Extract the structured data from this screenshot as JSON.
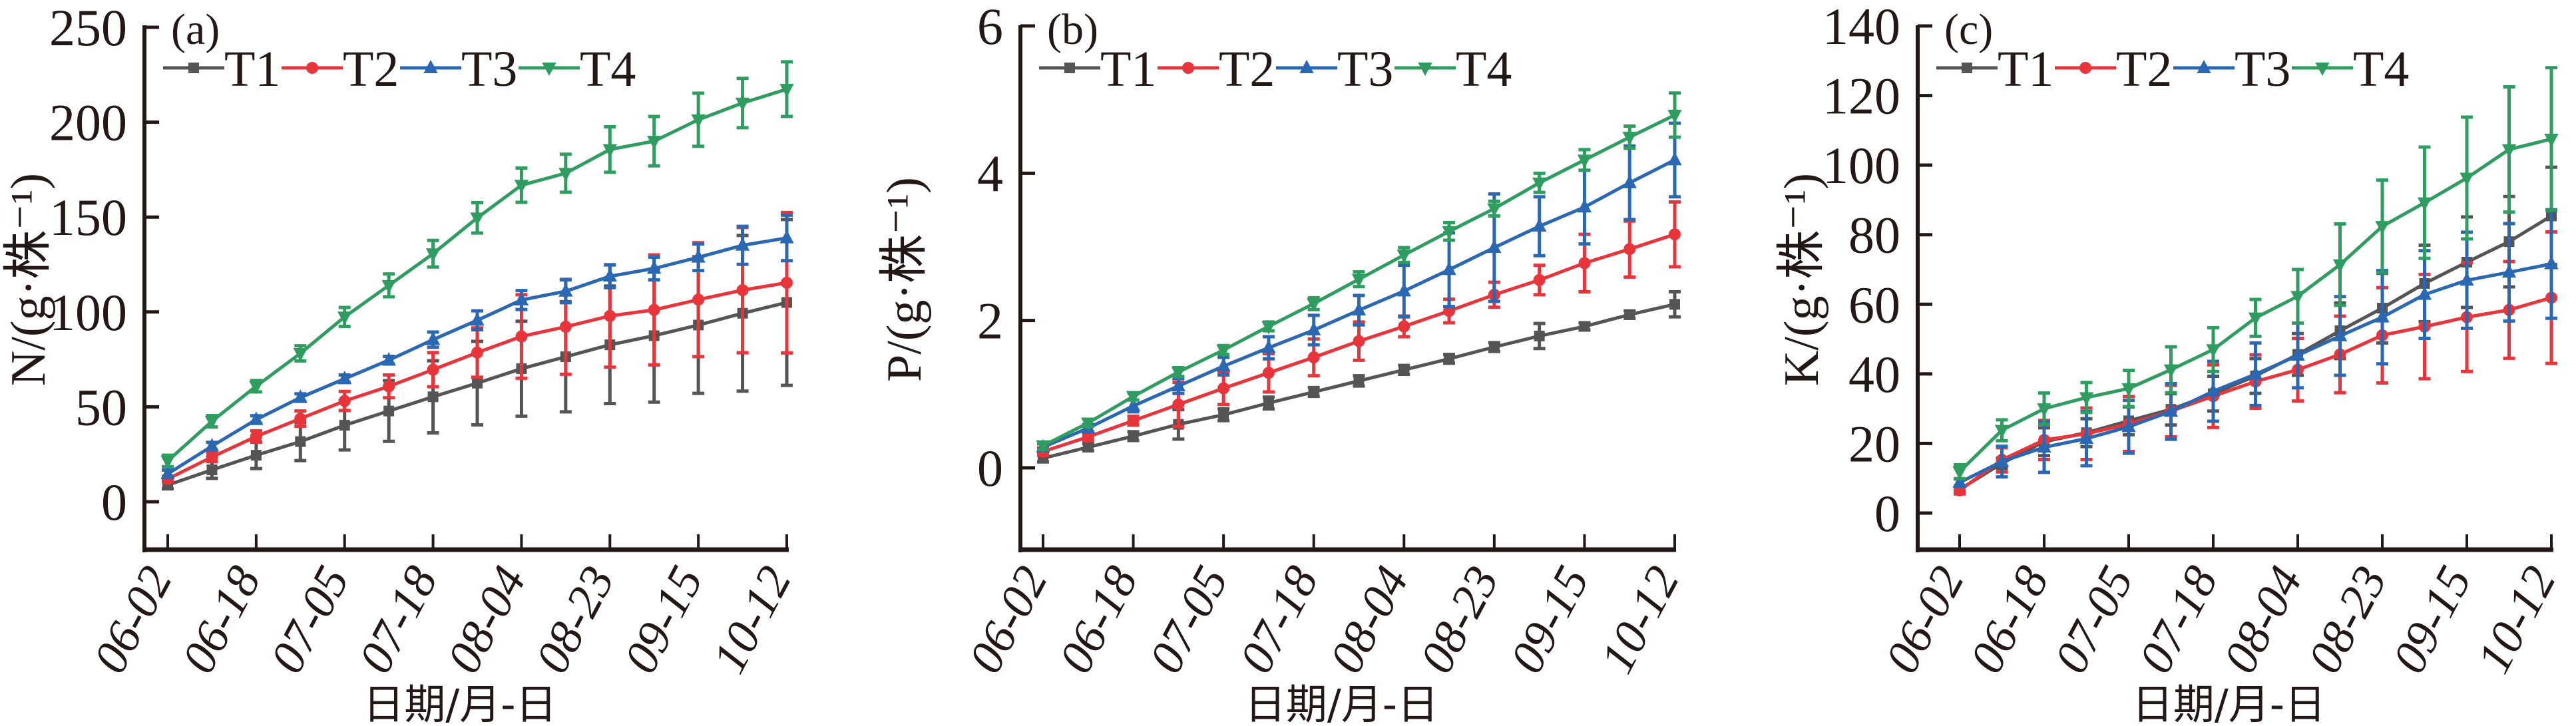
{
  "chart_data": [
    {
      "type": "line",
      "panel_label": "(a)",
      "ylabel": "N/(g·株⁻¹)",
      "xlabel": "日期/月-日",
      "ylim": [
        0,
        250
      ],
      "yticks": [
        "0",
        "50",
        "100",
        "150",
        "200",
        "250"
      ],
      "ytick_values": [
        0,
        50,
        100,
        150,
        200,
        250
      ],
      "x_count": 15,
      "xtick_labels": [
        "06-02",
        "06-18",
        "07-05",
        "07-18",
        "08-04",
        "08-23",
        "09-15",
        "10-12"
      ],
      "xtick_indices": [
        0,
        2,
        4,
        6,
        8,
        10,
        12,
        14
      ],
      "legend": "top-left",
      "series": [
        {
          "name": "T1",
          "color": "#555555",
          "marker": "square",
          "values": [
            8.8,
            16.8,
            24.5,
            31.7,
            40.3,
            47.8,
            55.3,
            62.5,
            70.1,
            76.4,
            82.7,
            87.5,
            93.1,
            99.3,
            105.0
          ],
          "errors": [
            2,
            4.5,
            7,
            10,
            13,
            16,
            19,
            22,
            25,
            29,
            31,
            35,
            36,
            41,
            43.7
          ]
        },
        {
          "name": "T2",
          "color": "#e8353b",
          "marker": "circle",
          "values": [
            12.0,
            23.6,
            34.4,
            43.8,
            53.1,
            60.8,
            69.6,
            78.6,
            87.1,
            92.2,
            97.9,
            101.1,
            106.5,
            111.5,
            115.4
          ],
          "errors": [
            1.5,
            2.5,
            3,
            4,
            5,
            6,
            9,
            13,
            22,
            25,
            27,
            29,
            30,
            33,
            37
          ]
        },
        {
          "name": "T3",
          "color": "#2b68b3",
          "marker": "triangle-up",
          "values": [
            14.7,
            29.3,
            43.3,
            54.9,
            64.8,
            74.6,
            85.4,
            95.6,
            106.3,
            110.9,
            118.8,
            122.9,
            128.8,
            135.1,
            139.0
          ],
          "errors": [
            2,
            2,
            2,
            2,
            2,
            2,
            4,
            5,
            5,
            6,
            6,
            6,
            7,
            10,
            12
          ]
        },
        {
          "name": "T4",
          "color": "#2e9d5f",
          "marker": "triangle-down",
          "values": [
            21.5,
            42.4,
            60.9,
            78.2,
            97.4,
            114.0,
            130.7,
            149.6,
            166.8,
            173.1,
            185.6,
            190.0,
            201.3,
            210.1,
            217.4
          ],
          "errors": [
            3,
            3,
            3,
            4,
            5,
            6,
            7,
            8,
            9,
            10,
            12,
            13,
            14,
            13,
            14.4
          ]
        }
      ]
    },
    {
      "type": "line",
      "panel_label": "(b)",
      "ylabel": "P/(g·株⁻¹)",
      "xlabel": "日期/月-日",
      "ylim": [
        -1.2,
        6
      ],
      "yticks": [
        "0",
        "2",
        "4",
        "6"
      ],
      "ytick_values": [
        0,
        2,
        4,
        6
      ],
      "x_count": 15,
      "xtick_labels": [
        "06-02",
        "06-18",
        "07-05",
        "07-18",
        "08-04",
        "08-23",
        "09-15",
        "10-12"
      ],
      "xtick_indices": [
        0,
        2,
        4,
        6,
        8,
        10,
        12,
        14
      ],
      "legend": "top-left",
      "series": [
        {
          "name": "T1",
          "color": "#555555",
          "marker": "square",
          "values": [
            0.13,
            0.28,
            0.43,
            0.59,
            0.72,
            0.88,
            1.03,
            1.18,
            1.33,
            1.48,
            1.64,
            1.79,
            1.92,
            2.08,
            2.22
          ],
          "errors": [
            0.05,
            0.05,
            0.06,
            0.2,
            0.08,
            0.08,
            0.06,
            0.07,
            0.06,
            0.06,
            0.06,
            0.17,
            0.05,
            0.05,
            0.17
          ]
        },
        {
          "name": "T2",
          "color": "#e8353b",
          "marker": "circle",
          "values": [
            0.22,
            0.42,
            0.64,
            0.86,
            1.08,
            1.29,
            1.5,
            1.72,
            1.92,
            2.13,
            2.35,
            2.55,
            2.78,
            2.97,
            3.17
          ],
          "errors": [
            0.05,
            0.05,
            0.06,
            0.3,
            0.22,
            0.26,
            0.25,
            0.26,
            0.14,
            0.16,
            0.17,
            0.2,
            0.39,
            0.38,
            0.44
          ]
        },
        {
          "name": "T3",
          "color": "#2b68b3",
          "marker": "triangle-up",
          "values": [
            0.28,
            0.54,
            0.84,
            1.11,
            1.38,
            1.63,
            1.87,
            2.14,
            2.4,
            2.69,
            2.99,
            3.28,
            3.54,
            3.87,
            4.18
          ],
          "errors": [
            0.05,
            0.05,
            0.08,
            0.1,
            0.12,
            0.15,
            0.2,
            0.2,
            0.35,
            0.5,
            0.73,
            0.4,
            0.5,
            0.5,
            0.5
          ]
        },
        {
          "name": "T4",
          "color": "#2e9d5f",
          "marker": "triangle-down",
          "values": [
            0.3,
            0.61,
            0.97,
            1.3,
            1.6,
            1.92,
            2.23,
            2.56,
            2.89,
            3.21,
            3.52,
            3.87,
            4.18,
            4.49,
            4.79
          ],
          "errors": [
            0.05,
            0.05,
            0.05,
            0.06,
            0.06,
            0.06,
            0.08,
            0.1,
            0.1,
            0.12,
            0.1,
            0.13,
            0.14,
            0.15,
            0.3
          ]
        }
      ]
    },
    {
      "type": "line",
      "panel_label": "(c)",
      "ylabel": "K/(g·株⁻¹)",
      "xlabel": "日期/月-日",
      "ylim": [
        -14,
        140
      ],
      "yticks": [
        "0",
        "20",
        "40",
        "60",
        "80",
        "100",
        "120",
        "140"
      ],
      "ytick_values": [
        0,
        20,
        40,
        60,
        80,
        100,
        120,
        140
      ],
      "x_count": 15,
      "xtick_labels": [
        "06-02",
        "06-18",
        "07-05",
        "07-18",
        "08-04",
        "08-23",
        "09-15",
        "10-12"
      ],
      "xtick_indices": [
        0,
        2,
        4,
        6,
        8,
        10,
        12,
        14
      ],
      "legend": "top-left",
      "series": [
        {
          "name": "T1",
          "color": "#555555",
          "marker": "square",
          "values": [
            6.8,
            14.3,
            20.5,
            23.1,
            26.5,
            29.8,
            34.3,
            39.4,
            45.6,
            52.4,
            58.9,
            66.0,
            72.1,
            78.0,
            85.4
          ],
          "errors": [
            1,
            1.5,
            4,
            4,
            4,
            4.5,
            5,
            5,
            6,
            8,
            10,
            11,
            13,
            13,
            14
          ]
        },
        {
          "name": "T2",
          "color": "#e8353b",
          "marker": "circle",
          "values": [
            6.5,
            15.3,
            21.0,
            22.8,
            25.6,
            29.3,
            33.6,
            37.8,
            41.2,
            45.6,
            51.1,
            53.6,
            56.3,
            58.4,
            61.9
          ],
          "errors": [
            1,
            3.5,
            5.6,
            7.4,
            7.9,
            7.4,
            9,
            7.7,
            9,
            11,
            13.7,
            15,
            15.6,
            13.9,
            18.9
          ]
        },
        {
          "name": "T3",
          "color": "#2b68b3",
          "marker": "triangle-up",
          "values": [
            8.8,
            14.8,
            18.9,
            21.4,
            24.8,
            29.2,
            35.0,
            39.9,
            45.3,
            50.9,
            56.3,
            62.8,
            66.9,
            69.2,
            71.6
          ],
          "errors": [
            1,
            4.4,
            7.2,
            7.8,
            7.6,
            8,
            8.6,
            9,
            9.3,
            11.3,
            13.4,
            12.6,
            13.8,
            14,
            15.6
          ]
        },
        {
          "name": "T4",
          "color": "#2e9d5f",
          "marker": "triangle-down",
          "values": [
            11.9,
            23.8,
            30.0,
            33.2,
            35.8,
            41.2,
            47.0,
            56.1,
            62.3,
            71.4,
            82.4,
            89.2,
            96.3,
            104.5,
            107.5
          ],
          "errors": [
            2,
            3,
            4.5,
            4.3,
            5.2,
            6.6,
            6.3,
            5.3,
            7.7,
            11.7,
            13.3,
            16,
            17.5,
            18,
            20.5
          ]
        }
      ]
    }
  ]
}
